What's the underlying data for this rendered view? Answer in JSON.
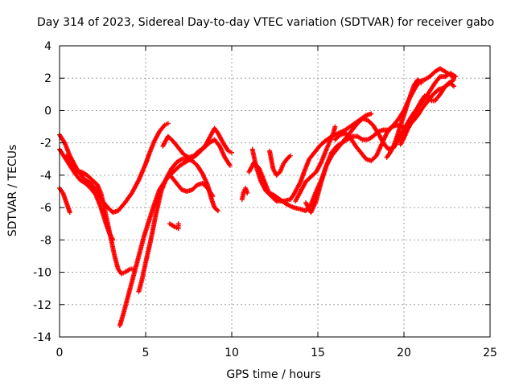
{
  "chart_data": {
    "type": "scatter",
    "title": "Day 314 of 2023, Sidereal Day-to-day VTEC variation (SDTVAR) for receiver gabo",
    "xlabel": "GPS time / hours",
    "ylabel": "SDTVAR / TECUs",
    "xlim": [
      0,
      25
    ],
    "ylim": [
      -14,
      4
    ],
    "xticks": [
      0,
      5,
      10,
      15,
      20,
      25
    ],
    "yticks": [
      -14,
      -12,
      -10,
      -8,
      -6,
      -4,
      -2,
      0,
      2,
      4
    ],
    "xtick_labels": [
      "0",
      "5",
      "10",
      "15",
      "20",
      "25"
    ],
    "ytick_labels": [
      "-14",
      "-12",
      "-10",
      "-8",
      "-6",
      "-4",
      "-2",
      "0",
      "2",
      "4"
    ],
    "grid": true,
    "marker": "plus",
    "color": "#ff0000",
    "series": [
      {
        "points": [
          [
            0.0,
            -1.5
          ],
          [
            0.3,
            -2.0
          ],
          [
            0.6,
            -2.8
          ],
          [
            1.0,
            -3.6
          ],
          [
            1.4,
            -4.2
          ],
          [
            1.8,
            -4.5
          ],
          [
            2.2,
            -5.0
          ],
          [
            2.5,
            -5.6
          ],
          [
            2.8,
            -6.0
          ],
          [
            3.1,
            -6.3
          ],
          [
            3.4,
            -6.2
          ],
          [
            3.8,
            -5.7
          ],
          [
            4.2,
            -5.1
          ],
          [
            4.6,
            -4.3
          ],
          [
            5.0,
            -3.3
          ],
          [
            5.2,
            -2.7
          ],
          [
            5.5,
            -1.9
          ],
          [
            5.8,
            -1.3
          ],
          [
            6.1,
            -0.9
          ],
          [
            6.3,
            -0.8
          ]
        ]
      },
      {
        "points": [
          [
            0.0,
            -2.4
          ],
          [
            0.3,
            -2.9
          ],
          [
            0.6,
            -3.4
          ],
          [
            0.9,
            -3.9
          ],
          [
            1.2,
            -4.3
          ],
          [
            1.5,
            -4.5
          ],
          [
            1.8,
            -4.8
          ],
          [
            2.1,
            -5.2
          ],
          [
            2.4,
            -6.0
          ],
          [
            2.7,
            -7.0
          ],
          [
            2.9,
            -7.6
          ],
          [
            3.1,
            -8.0
          ]
        ]
      },
      {
        "points": [
          [
            0.4,
            -2.8
          ],
          [
            0.7,
            -3.4
          ],
          [
            1.0,
            -3.8
          ],
          [
            1.3,
            -3.8
          ],
          [
            1.6,
            -4.0
          ],
          [
            1.9,
            -4.3
          ],
          [
            2.2,
            -4.6
          ],
          [
            2.4,
            -5.1
          ],
          [
            2.6,
            -6.0
          ],
          [
            2.8,
            -7.0
          ],
          [
            3.0,
            -8.0
          ],
          [
            3.2,
            -9.0
          ],
          [
            3.4,
            -9.8
          ],
          [
            3.6,
            -10.1
          ],
          [
            3.8,
            -10.0
          ],
          [
            4.1,
            -9.8
          ],
          [
            4.3,
            -9.8
          ]
        ]
      },
      {
        "points": [
          [
            3.5,
            -13.3
          ],
          [
            3.7,
            -12.6
          ],
          [
            3.9,
            -11.8
          ],
          [
            4.1,
            -11.0
          ],
          [
            4.3,
            -10.2
          ],
          [
            4.6,
            -9.0
          ],
          [
            4.9,
            -7.8
          ],
          [
            5.2,
            -6.8
          ],
          [
            5.5,
            -5.8
          ],
          [
            5.8,
            -4.9
          ],
          [
            6.1,
            -4.4
          ],
          [
            6.4,
            -4.0
          ],
          [
            6.7,
            -3.7
          ],
          [
            7.0,
            -3.4
          ],
          [
            7.3,
            -3.2
          ],
          [
            7.6,
            -3.0
          ],
          [
            7.9,
            -2.8
          ],
          [
            8.2,
            -2.5
          ],
          [
            8.5,
            -2.1
          ],
          [
            8.8,
            -1.5
          ],
          [
            9.0,
            -1.1
          ],
          [
            9.2,
            -1.4
          ],
          [
            9.5,
            -2.0
          ],
          [
            9.8,
            -2.5
          ],
          [
            10.0,
            -2.6
          ]
        ]
      },
      {
        "points": [
          [
            4.6,
            -11.2
          ],
          [
            4.8,
            -10.4
          ],
          [
            5.0,
            -9.4
          ],
          [
            5.3,
            -8.0
          ],
          [
            5.6,
            -6.4
          ],
          [
            5.9,
            -5.0
          ],
          [
            6.2,
            -4.2
          ],
          [
            6.5,
            -3.6
          ],
          [
            6.8,
            -3.2
          ],
          [
            7.1,
            -3.0
          ],
          [
            7.4,
            -3.0
          ],
          [
            7.7,
            -3.1
          ],
          [
            8.0,
            -3.4
          ],
          [
            8.3,
            -3.9
          ],
          [
            8.6,
            -4.6
          ],
          [
            8.8,
            -5.4
          ],
          [
            9.0,
            -6.0
          ],
          [
            9.2,
            -6.2
          ]
        ]
      },
      {
        "points": [
          [
            6.0,
            -2.2
          ],
          [
            6.3,
            -1.6
          ],
          [
            6.6,
            -1.9
          ],
          [
            6.9,
            -2.3
          ],
          [
            7.2,
            -2.7
          ],
          [
            7.5,
            -2.9
          ],
          [
            7.8,
            -2.8
          ],
          [
            8.1,
            -2.5
          ],
          [
            8.4,
            -2.3
          ],
          [
            8.7,
            -2.0
          ],
          [
            9.0,
            -1.8
          ],
          [
            9.3,
            -2.2
          ],
          [
            9.6,
            -2.9
          ],
          [
            9.9,
            -3.4
          ]
        ]
      },
      {
        "points": [
          [
            6.5,
            -4.1
          ],
          [
            6.8,
            -4.5
          ],
          [
            7.1,
            -4.9
          ],
          [
            7.4,
            -5.0
          ],
          [
            7.7,
            -4.9
          ],
          [
            8.0,
            -4.6
          ],
          [
            8.3,
            -4.5
          ],
          [
            8.6,
            -4.8
          ],
          [
            8.9,
            -5.3
          ]
        ]
      },
      {
        "points": [
          [
            6.4,
            -7.0
          ],
          [
            6.7,
            -7.2
          ],
          [
            6.9,
            -7.3
          ],
          [
            6.9,
            -7.0
          ]
        ]
      },
      {
        "points": [
          [
            0.0,
            -4.8
          ],
          [
            0.2,
            -5.1
          ],
          [
            0.4,
            -5.7
          ],
          [
            0.6,
            -6.3
          ]
        ]
      },
      {
        "points": [
          [
            10.6,
            -5.5
          ],
          [
            10.7,
            -5.0
          ],
          [
            10.8,
            -4.8
          ],
          [
            10.9,
            -5.1
          ]
        ]
      },
      {
        "points": [
          [
            11.0,
            -3.8
          ],
          [
            11.3,
            -3.2
          ],
          [
            11.6,
            -3.6
          ],
          [
            11.9,
            -4.4
          ],
          [
            12.2,
            -5.2
          ],
          [
            12.6,
            -5.6
          ],
          [
            13.0,
            -5.6
          ],
          [
            13.4,
            -5.5
          ],
          [
            13.6,
            -5.2
          ],
          [
            13.8,
            -4.8
          ],
          [
            14.0,
            -4.4
          ],
          [
            14.2,
            -3.8
          ],
          [
            14.5,
            -3.0
          ],
          [
            14.8,
            -2.6
          ],
          [
            15.1,
            -2.2
          ],
          [
            15.4,
            -1.9
          ],
          [
            15.8,
            -1.6
          ],
          [
            16.2,
            -1.4
          ],
          [
            16.6,
            -1.2
          ],
          [
            17.0,
            -0.9
          ],
          [
            17.4,
            -0.6
          ],
          [
            17.8,
            -0.3
          ],
          [
            18.1,
            -0.2
          ]
        ]
      },
      {
        "points": [
          [
            11.2,
            -2.4
          ],
          [
            11.4,
            -3.4
          ],
          [
            11.7,
            -4.4
          ],
          [
            12.0,
            -5.0
          ],
          [
            12.4,
            -5.2
          ],
          [
            12.8,
            -5.5
          ],
          [
            13.2,
            -5.8
          ],
          [
            13.6,
            -6.0
          ],
          [
            14.0,
            -6.1
          ],
          [
            14.3,
            -6.2
          ],
          [
            14.6,
            -5.8
          ],
          [
            14.9,
            -5.0
          ],
          [
            15.2,
            -4.3
          ],
          [
            15.5,
            -3.4
          ],
          [
            15.8,
            -2.6
          ],
          [
            16.1,
            -2.2
          ],
          [
            16.4,
            -2.0
          ],
          [
            16.7,
            -1.8
          ],
          [
            17.0,
            -1.6
          ],
          [
            17.3,
            -1.6
          ],
          [
            17.6,
            -1.8
          ],
          [
            17.9,
            -1.8
          ],
          [
            18.2,
            -1.6
          ],
          [
            18.5,
            -1.3
          ],
          [
            18.8,
            -1.2
          ],
          [
            19.1,
            -1.2
          ],
          [
            19.4,
            -0.9
          ],
          [
            19.7,
            -0.5
          ],
          [
            20.0,
            0.0
          ],
          [
            20.3,
            0.7
          ],
          [
            20.6,
            1.3
          ],
          [
            20.9,
            1.8
          ],
          [
            21.2,
            1.9
          ],
          [
            21.5,
            2.1
          ],
          [
            21.8,
            2.4
          ],
          [
            22.1,
            2.6
          ],
          [
            22.4,
            2.4
          ],
          [
            22.7,
            2.2
          ],
          [
            22.9,
            2.0
          ]
        ]
      },
      {
        "points": [
          [
            12.2,
            -2.5
          ],
          [
            12.4,
            -3.6
          ],
          [
            12.6,
            -4.0
          ],
          [
            12.8,
            -3.8
          ],
          [
            13.0,
            -3.3
          ],
          [
            13.2,
            -3.0
          ],
          [
            13.4,
            -2.8
          ]
        ]
      },
      {
        "points": [
          [
            13.7,
            -5.6
          ],
          [
            13.9,
            -5.2
          ],
          [
            14.1,
            -4.8
          ],
          [
            14.3,
            -4.4
          ],
          [
            14.6,
            -4.1
          ],
          [
            14.9,
            -3.8
          ],
          [
            15.2,
            -3.2
          ],
          [
            15.5,
            -2.4
          ],
          [
            15.7,
            -1.9
          ],
          [
            15.9,
            -1.4
          ],
          [
            16.0,
            -1.0
          ]
        ]
      },
      {
        "points": [
          [
            14.3,
            -5.7
          ],
          [
            14.6,
            -6.3
          ],
          [
            14.9,
            -5.6
          ],
          [
            15.2,
            -4.4
          ],
          [
            15.5,
            -3.4
          ],
          [
            15.8,
            -2.8
          ],
          [
            16.1,
            -2.4
          ],
          [
            16.4,
            -2.0
          ],
          [
            16.7,
            -1.6
          ],
          [
            17.0,
            -1.2
          ],
          [
            17.3,
            -0.8
          ],
          [
            17.6,
            -0.5
          ],
          [
            17.9,
            -0.6
          ],
          [
            18.2,
            -0.9
          ],
          [
            18.5,
            -1.4
          ],
          [
            18.8,
            -2.0
          ],
          [
            19.1,
            -2.4
          ],
          [
            19.4,
            -2.3
          ],
          [
            19.7,
            -1.8
          ],
          [
            20.0,
            -1.2
          ],
          [
            20.3,
            -0.6
          ],
          [
            20.6,
            -0.1
          ],
          [
            20.9,
            0.3
          ],
          [
            21.2,
            0.7
          ],
          [
            21.5,
            1.2
          ],
          [
            21.8,
            1.7
          ],
          [
            22.1,
            2.1
          ],
          [
            22.4,
            2.1
          ],
          [
            22.7,
            2.3
          ],
          [
            23.0,
            2.1
          ]
        ]
      },
      {
        "points": [
          [
            16.0,
            -1.8
          ],
          [
            16.3,
            -1.5
          ],
          [
            16.6,
            -1.4
          ],
          [
            16.9,
            -1.7
          ],
          [
            17.2,
            -2.2
          ],
          [
            17.5,
            -2.6
          ],
          [
            17.8,
            -3.0
          ],
          [
            18.1,
            -3.1
          ],
          [
            18.4,
            -2.8
          ],
          [
            18.7,
            -2.1
          ],
          [
            19.0,
            -1.4
          ],
          [
            19.3,
            -1.0
          ],
          [
            19.6,
            -0.9
          ],
          [
            19.9,
            -1.0
          ],
          [
            20.2,
            -1.0
          ],
          [
            20.5,
            -0.7
          ],
          [
            20.8,
            -0.3
          ],
          [
            21.1,
            0.2
          ],
          [
            21.4,
            0.6
          ],
          [
            21.7,
            1.0
          ],
          [
            22.0,
            1.3
          ],
          [
            22.3,
            1.4
          ],
          [
            22.6,
            1.7
          ],
          [
            22.9,
            1.9
          ]
        ]
      },
      {
        "points": [
          [
            19.0,
            -2.9
          ],
          [
            19.2,
            -2.6
          ],
          [
            19.4,
            -2.2
          ],
          [
            19.6,
            -1.6
          ],
          [
            19.8,
            -0.9
          ],
          [
            20.0,
            -0.3
          ],
          [
            20.2,
            0.4
          ],
          [
            20.4,
            1.0
          ],
          [
            20.6,
            1.6
          ],
          [
            20.8,
            1.9
          ],
          [
            21.0,
            1.7
          ]
        ]
      },
      {
        "points": [
          [
            19.8,
            -2.1
          ],
          [
            20.0,
            -1.7
          ],
          [
            20.2,
            -1.2
          ],
          [
            20.4,
            -0.8
          ],
          [
            20.6,
            -0.3
          ],
          [
            20.8,
            0.2
          ],
          [
            21.0,
            0.6
          ],
          [
            21.2,
            0.9
          ],
          [
            21.4,
            0.9
          ],
          [
            21.6,
            0.6
          ],
          [
            21.8,
            0.6
          ],
          [
            22.1,
            1.0
          ],
          [
            22.4,
            1.5
          ],
          [
            22.7,
            1.7
          ],
          [
            22.9,
            1.5
          ]
        ]
      }
    ]
  }
}
